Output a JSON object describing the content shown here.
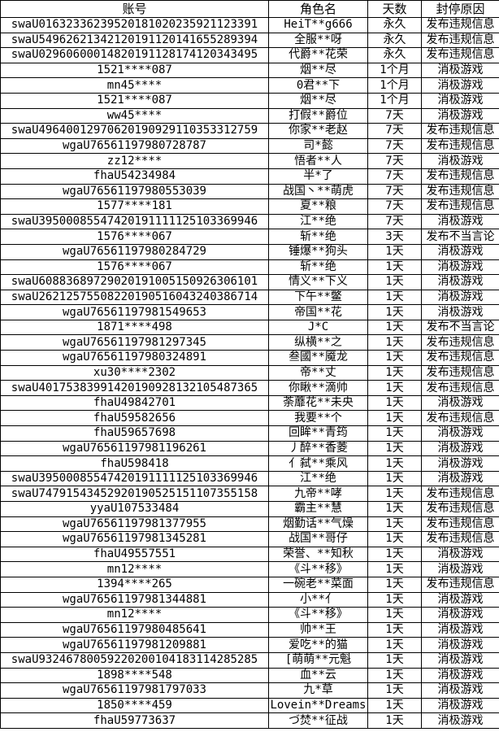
{
  "table": {
    "columns": [
      "账号",
      "角色名",
      "天数",
      "封停原因"
    ],
    "rows": [
      [
        "swaU01632336239520181020235921123391",
        "HeiT**g666",
        "永久",
        "发布违规信息"
      ],
      [
        "swaU54962621342120191120141655289394",
        "全服**呀",
        "永久",
        "发布违规信息"
      ],
      [
        "swaU02960600014820191128174120343495",
        "代爵**花荣",
        "永久",
        "发布违规信息"
      ],
      [
        "1521****087",
        "烟**尽",
        "1个月",
        "消极游戏"
      ],
      [
        "mn45****",
        "0君**下",
        "1个月",
        "消极游戏"
      ],
      [
        "1521****087",
        "烟**尽",
        "1个月",
        "消极游戏"
      ],
      [
        "ww45****",
        "打假**爵位",
        "7天",
        "消极游戏"
      ],
      [
        "swaU49640012970620190929110353312759",
        "你家**老赵",
        "7天",
        "发布违规信息"
      ],
      [
        "wgaU76561197980728787",
        "司*懿",
        "7天",
        "发布违规信息"
      ],
      [
        "zz12****",
        "悟者**人",
        "7天",
        "消极游戏"
      ],
      [
        "fhaU54234984",
        "半*了",
        "7天",
        "发布违规信息"
      ],
      [
        "wgaU76561197980553039",
        "战国丶**萌虎",
        "7天",
        "发布违规信息"
      ],
      [
        "1577****181",
        "夏**粮",
        "7天",
        "发布违规信息"
      ],
      [
        "swaU39500085547420191111125103369946",
        "江**绝",
        "7天",
        "消极游戏"
      ],
      [
        "1576****067",
        "斩**绝",
        "3天",
        "发布不当言论"
      ],
      [
        "wgaU76561197980284729",
        "锤爆**狗头",
        "1天",
        "消极游戏"
      ],
      [
        "1576****067",
        "斩**绝",
        "1天",
        "消极游戏"
      ],
      [
        "swaU60883689729020191005150926306101",
        "情义**下义",
        "1天",
        "消极游戏"
      ],
      [
        "swaU26212575508220190516043240386714",
        "下午**鳖",
        "1天",
        "消极游戏"
      ],
      [
        "wgaU76561197981549653",
        "帝国**花",
        "1天",
        "消极游戏"
      ],
      [
        "1871****498",
        "J*C",
        "1天",
        "发布不当言论"
      ],
      [
        "wgaU76561197981297345",
        "纵横**之",
        "1天",
        "发布违规信息"
      ],
      [
        "wgaU76561197980324891",
        "叁國**魇龙",
        "1天",
        "发布违规信息"
      ],
      [
        "xu30****2302",
        "帝**丈",
        "1天",
        "发布违规信息"
      ],
      [
        "swaU40175383991420190928132105487365",
        "你瞅**滴帅",
        "1天",
        "发布违规信息"
      ],
      [
        "fhaU49842701",
        "荼蘼花**未央",
        "1天",
        "消极游戏"
      ],
      [
        "fhaU59582656",
        "我要**个",
        "1天",
        "发布违规信息"
      ],
      [
        "fhaU59657698",
        "回眸**青筠",
        "1天",
        "消极游戏"
      ],
      [
        "wgaU76561197981196261",
        "丿醉**香菱",
        "1天",
        "消极游戏"
      ],
      [
        "fhaU598418",
        "亻弑**乘风",
        "1天",
        "消极游戏"
      ],
      [
        "swaU39500085547420191111125103369946",
        "江**绝",
        "1天",
        "消极游戏"
      ],
      [
        "swaU74791543452920190525151107355158",
        "九帝**哮",
        "1天",
        "发布违规信息"
      ],
      [
        "yyaU107533484",
        "霸主**慧",
        "1天",
        "发布违规信息"
      ],
      [
        "wgaU76561197981377955",
        "烟勤话**气燥",
        "1天",
        "发布违规信息"
      ],
      [
        "wgaU76561197981345281",
        "战国**哥仔",
        "1天",
        "发布违规信息"
      ],
      [
        "fhaU49557551",
        "荣誉、**知秋",
        "1天",
        "消极游戏"
      ],
      [
        "mn12****",
        "《斗**移》",
        "1天",
        "消极游戏"
      ],
      [
        "1394****265",
        "一碗老**菜面",
        "1天",
        "发布违规信息"
      ],
      [
        "wgaU76561197981344881",
        "小**亻",
        "1天",
        "消极游戏"
      ],
      [
        "mn12****",
        "《斗**移》",
        "1天",
        "消极游戏"
      ],
      [
        "wgaU76561197980485641",
        "帅**王",
        "1天",
        "消极游戏"
      ],
      [
        "wgaU76561197981209881",
        "爱吃**的猫",
        "1天",
        "消极游戏"
      ],
      [
        "swaU93246780059220200104183114285285",
        "[萌萌**元魁",
        "1天",
        "消极游戏"
      ],
      [
        "1898****548",
        "血**云",
        "1天",
        "消极游戏"
      ],
      [
        "wgaU76561197981797033",
        "九*草",
        "1天",
        "消极游戏"
      ],
      [
        "1850****459",
        "Lovein**Dreams",
        "1天",
        "消极游戏"
      ],
      [
        "fhaU59773637",
        "づ焚**征战",
        "1天",
        "消极游戏"
      ]
    ]
  }
}
